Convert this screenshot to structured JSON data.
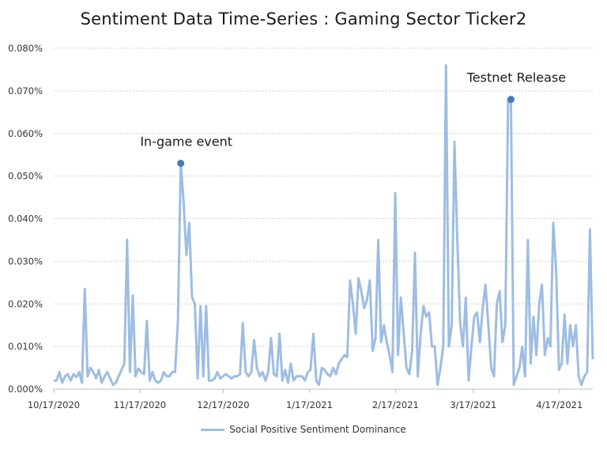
{
  "chart_data": {
    "type": "line",
    "title": "Sentiment Data Time-Series : Gaming Sector Ticker2",
    "xlabel": "",
    "ylabel": "",
    "ylim": [
      0,
      0.08
    ],
    "y_ticks": [
      "0.000%",
      "0.010%",
      "0.020%",
      "0.030%",
      "0.040%",
      "0.050%",
      "0.060%",
      "0.070%",
      "0.080%"
    ],
    "x_ticks": [
      "10/17/2020",
      "11/17/2020",
      "12/17/2020",
      "1/17/2021",
      "2/17/2021",
      "3/17/2021",
      "4/17/2021"
    ],
    "x_start": "10/17/2020",
    "grid": true,
    "line_color": "#9dbde3",
    "marker_color": "#3f7fb5",
    "series": [
      {
        "name": "Social Positive Sentiment Dominance",
        "values": [
          0.002,
          0.002,
          0.004,
          0.0015,
          0.003,
          0.0035,
          0.002,
          0.0035,
          0.0028,
          0.004,
          0.0015,
          0.0235,
          0.003,
          0.005,
          0.004,
          0.0025,
          0.0045,
          0.0015,
          0.003,
          0.004,
          0.0025,
          0.001,
          0.0015,
          0.003,
          0.0045,
          0.006,
          0.035,
          0.004,
          0.022,
          0.003,
          0.0048,
          0.004,
          0.0035,
          0.016,
          0.002,
          0.004,
          0.002,
          0.0015,
          0.002,
          0.004,
          0.003,
          0.003,
          0.004,
          0.004,
          0.016,
          0.053,
          0.044,
          0.0315,
          0.039,
          0.0215,
          0.02,
          0.0025,
          0.0195,
          0.003,
          0.0195,
          0.002,
          0.002,
          0.0025,
          0.004,
          0.0025,
          0.003,
          0.0035,
          0.003,
          0.0025,
          0.003,
          0.003,
          0.0035,
          0.0155,
          0.004,
          0.003,
          0.004,
          0.0115,
          0.005,
          0.003,
          0.004,
          0.002,
          0.004,
          0.012,
          0.0035,
          0.003,
          0.013,
          0.002,
          0.0045,
          0.0015,
          0.006,
          0.002,
          0.003,
          0.003,
          0.003,
          0.002,
          0.004,
          0.0045,
          0.013,
          0.002,
          0.001,
          0.005,
          0.0045,
          0.0035,
          0.003,
          0.005,
          0.0035,
          0.006,
          0.007,
          0.008,
          0.0075,
          0.0255,
          0.02,
          0.013,
          0.026,
          0.023,
          0.019,
          0.021,
          0.0255,
          0.009,
          0.012,
          0.035,
          0.011,
          0.015,
          0.011,
          0.008,
          0.004,
          0.046,
          0.008,
          0.0215,
          0.013,
          0.005,
          0.0035,
          0.009,
          0.032,
          0.003,
          0.013,
          0.0195,
          0.017,
          0.018,
          0.01,
          0.01,
          0.001,
          0.005,
          0.01,
          0.076,
          0.01,
          0.015,
          0.058,
          0.035,
          0.0155,
          0.01,
          0.0215,
          0.002,
          0.01,
          0.017,
          0.018,
          0.011,
          0.019,
          0.0245,
          0.015,
          0.005,
          0.003,
          0.02,
          0.023,
          0.011,
          0.015,
          0.068,
          0.067,
          0.001,
          0.003,
          0.005,
          0.01,
          0.003,
          0.035,
          0.006,
          0.017,
          0.008,
          0.02,
          0.0245,
          0.008,
          0.012,
          0.01,
          0.039,
          0.028,
          0.0045,
          0.006,
          0.0175,
          0.006,
          0.015,
          0.01,
          0.015,
          0.003,
          0.001,
          0.003,
          0.004,
          0.0375,
          0.007
        ]
      }
    ],
    "annotations": [
      {
        "text": "In-game event",
        "index": 45,
        "value": 0.053
      },
      {
        "text": "Testnet Release",
        "index": 162,
        "value": 0.068
      }
    ]
  }
}
